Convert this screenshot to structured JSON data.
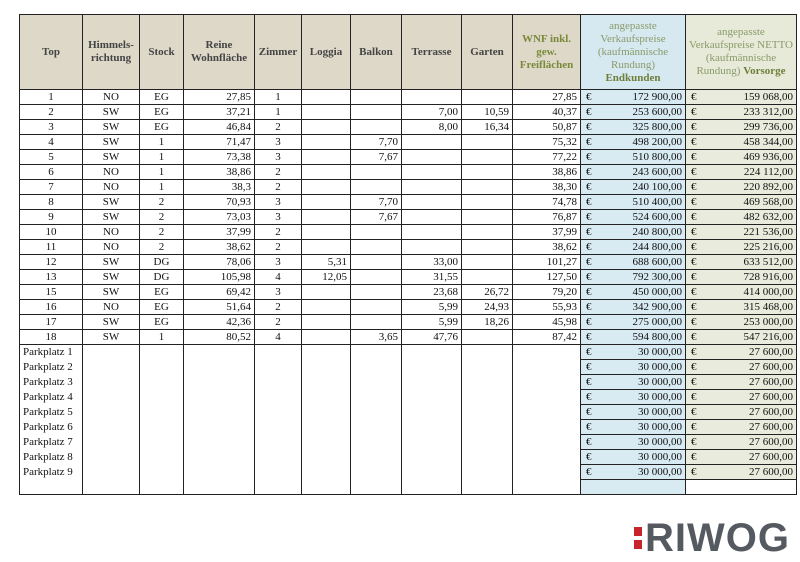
{
  "headers": [
    "Top",
    "Himmels-richtung",
    "Stock",
    "Reine Wohnfläche",
    "Zimmer",
    "Loggia",
    "Balkon",
    "Terrasse",
    "Garten",
    "WNF inkl. gew. Freiflächen",
    "angepasste Verkaufspreise (kaufmännische Rundung)",
    "Endkunden",
    "angepasste Verkaufspreise NETTO (kaufmännische Rundung)",
    "Vorsorge"
  ],
  "currency": "€",
  "rows": [
    [
      "1",
      "NO",
      "EG",
      "27,85",
      "1",
      "",
      "",
      "",
      "",
      "27,85",
      "172 900,00",
      "159 068,00"
    ],
    [
      "2",
      "SW",
      "EG",
      "37,21",
      "1",
      "",
      "",
      "7,00",
      "10,59",
      "40,37",
      "253 600,00",
      "233 312,00"
    ],
    [
      "3",
      "SW",
      "EG",
      "46,84",
      "2",
      "",
      "",
      "8,00",
      "16,34",
      "50,87",
      "325 800,00",
      "299 736,00"
    ],
    [
      "4",
      "SW",
      "1",
      "71,47",
      "3",
      "",
      "7,70",
      "",
      "",
      "75,32",
      "498 200,00",
      "458 344,00"
    ],
    [
      "5",
      "SW",
      "1",
      "73,38",
      "3",
      "",
      "7,67",
      "",
      "",
      "77,22",
      "510 800,00",
      "469 936,00"
    ],
    [
      "6",
      "NO",
      "1",
      "38,86",
      "2",
      "",
      "",
      "",
      "",
      "38,86",
      "243 600,00",
      "224 112,00"
    ],
    [
      "7",
      "NO",
      "1",
      "38,3",
      "2",
      "",
      "",
      "",
      "",
      "38,30",
      "240 100,00",
      "220 892,00"
    ],
    [
      "8",
      "SW",
      "2",
      "70,93",
      "3",
      "",
      "7,70",
      "",
      "",
      "74,78",
      "510 400,00",
      "469 568,00"
    ],
    [
      "9",
      "SW",
      "2",
      "73,03",
      "3",
      "",
      "7,67",
      "",
      "",
      "76,87",
      "524 600,00",
      "482 632,00"
    ],
    [
      "10",
      "NO",
      "2",
      "37,99",
      "2",
      "",
      "",
      "",
      "",
      "37,99",
      "240 800,00",
      "221 536,00"
    ],
    [
      "11",
      "NO",
      "2",
      "38,62",
      "2",
      "",
      "",
      "",
      "",
      "38,62",
      "244 800,00",
      "225 216,00"
    ],
    [
      "12",
      "SW",
      "DG",
      "78,06",
      "3",
      "5,31",
      "",
      "33,00",
      "",
      "101,27",
      "688 600,00",
      "633 512,00"
    ],
    [
      "13",
      "SW",
      "DG",
      "105,98",
      "4",
      "12,05",
      "",
      "31,55",
      "",
      "127,50",
      "792 300,00",
      "728 916,00"
    ],
    [
      "15",
      "SW",
      "EG",
      "69,42",
      "3",
      "",
      "",
      "23,68",
      "26,72",
      "79,20",
      "450 000,00",
      "414 000,00"
    ],
    [
      "16",
      "NO",
      "EG",
      "51,64",
      "2",
      "",
      "",
      "5,99",
      "24,93",
      "55,93",
      "342 900,00",
      "315 468,00"
    ],
    [
      "17",
      "SW",
      "EG",
      "42,36",
      "2",
      "",
      "",
      "5,99",
      "18,26",
      "45,98",
      "275 000,00",
      "253 000,00"
    ],
    [
      "18",
      "SW",
      "1",
      "80,52",
      "4",
      "",
      "3,65",
      "47,76",
      "",
      "87,42",
      "594 800,00",
      "547 216,00"
    ]
  ],
  "parking": [
    [
      "Parkplatz 1",
      "30 000,00",
      "27 600,00"
    ],
    [
      "Parkplatz 2",
      "30 000,00",
      "27 600,00"
    ],
    [
      "Parkplatz 3",
      "30 000,00",
      "27 600,00"
    ],
    [
      "Parkplatz 4",
      "30 000,00",
      "27 600,00"
    ],
    [
      "Parkplatz 5",
      "30 000,00",
      "27 600,00"
    ],
    [
      "Parkplatz 6",
      "30 000,00",
      "27 600,00"
    ],
    [
      "Parkplatz 7",
      "30 000,00",
      "27 600,00"
    ],
    [
      "Parkplatz 8",
      "30 000,00",
      "27 600,00"
    ],
    [
      "Parkplatz 9",
      "30 000,00",
      "27 600,00"
    ]
  ],
  "logo": "RIWOG",
  "colors": {
    "header": "#ddd8c8",
    "endkunden": "#d8eaf2",
    "vorsorge": "#e9ecdc",
    "logo_red": "#c8242c",
    "logo_gray": "#555a60"
  }
}
